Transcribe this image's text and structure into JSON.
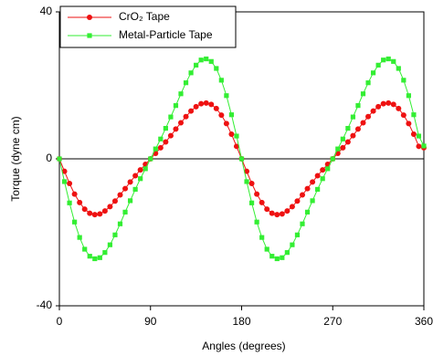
{
  "chart_data": {
    "type": "line",
    "x_label": "Angles (degrees)",
    "y_label": "Torque (dyne cm)",
    "x": [
      0,
      5,
      10,
      15,
      20,
      25,
      30,
      35,
      40,
      45,
      50,
      55,
      60,
      65,
      70,
      75,
      80,
      85,
      90,
      95,
      100,
      105,
      110,
      115,
      120,
      125,
      130,
      135,
      140,
      145,
      150,
      155,
      160,
      165,
      170,
      175,
      180,
      185,
      190,
      195,
      200,
      205,
      210,
      215,
      220,
      225,
      230,
      235,
      240,
      245,
      250,
      255,
      260,
      265,
      270,
      275,
      280,
      285,
      290,
      295,
      300,
      305,
      310,
      315,
      320,
      325,
      330,
      335,
      340,
      345,
      350,
      355,
      360
    ],
    "series": [
      {
        "name": "CrO₂ Tape",
        "color": "#ee1111",
        "marker": "circle",
        "values": [
          0,
          -3.4,
          -6.7,
          -9.6,
          -11.9,
          -13.7,
          -14.8,
          -15.2,
          -15.0,
          -14.2,
          -13.0,
          -11.5,
          -9.8,
          -8.1,
          -6.3,
          -4.6,
          -3.0,
          -1.5,
          0,
          1.5,
          3.0,
          4.6,
          6.3,
          8.1,
          9.8,
          11.5,
          13.0,
          14.2,
          15.0,
          15.2,
          14.8,
          13.7,
          11.9,
          9.6,
          6.7,
          3.4,
          0,
          -3.4,
          -6.7,
          -9.6,
          -11.9,
          -13.7,
          -14.8,
          -15.2,
          -15.0,
          -14.2,
          -13.0,
          -11.5,
          -9.8,
          -8.1,
          -6.3,
          -4.6,
          -3.0,
          -1.5,
          0,
          1.5,
          3.0,
          4.6,
          6.3,
          8.1,
          9.8,
          11.5,
          13.0,
          14.2,
          15.0,
          15.2,
          14.8,
          13.7,
          11.9,
          9.6,
          6.7,
          3.4,
          3.0
        ]
      },
      {
        "name": "Metal-Particle Tape",
        "color": "#33ee33",
        "marker": "square",
        "values": [
          0,
          -6.2,
          -12.0,
          -17.2,
          -21.4,
          -24.6,
          -26.5,
          -27.2,
          -26.9,
          -25.5,
          -23.4,
          -20.7,
          -17.7,
          -14.5,
          -11.4,
          -8.3,
          -5.4,
          -2.7,
          0,
          2.7,
          5.4,
          8.3,
          11.4,
          14.5,
          17.7,
          20.7,
          23.4,
          25.5,
          26.9,
          27.2,
          26.5,
          24.6,
          21.4,
          17.2,
          12.0,
          6.2,
          0,
          -6.2,
          -12.0,
          -17.2,
          -21.4,
          -24.6,
          -26.5,
          -27.2,
          -26.9,
          -25.5,
          -23.4,
          -20.7,
          -17.7,
          -14.5,
          -11.4,
          -8.3,
          -5.4,
          -2.7,
          0,
          2.7,
          5.4,
          8.3,
          11.4,
          14.5,
          17.7,
          20.7,
          23.4,
          25.5,
          26.9,
          27.2,
          26.5,
          24.6,
          21.4,
          17.2,
          12.0,
          6.2,
          3.5
        ]
      }
    ],
    "xlim": [
      0,
      360
    ],
    "xticks": [
      0,
      90,
      180,
      270,
      360
    ],
    "ylim": [
      -40,
      40
    ],
    "yticks": [
      -40,
      0,
      40
    ],
    "reference_line": 0,
    "legend": "upper left"
  }
}
